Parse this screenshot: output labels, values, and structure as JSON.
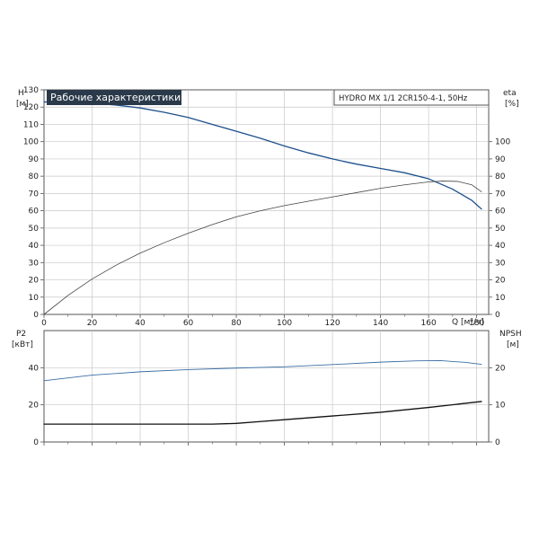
{
  "header": {
    "title": "Рабочие характеристики",
    "model": "HYDRO MX 1/1 2CR150-4-1, 50Hz",
    "title_bg": "#2b3a4a"
  },
  "colors": {
    "head_curve": "#1d4f8c",
    "eta_curve": "#444444",
    "p2_curve": "#3a6ea5",
    "npsh_curve": "#111111",
    "grid": "#c8c8c8",
    "frame": "#555555"
  },
  "chart_data": [
    {
      "type": "line",
      "panel": "main",
      "x_label": "Q [м³/ч]",
      "xlim": [
        0,
        185
      ],
      "x_ticks": [
        0,
        20,
        40,
        60,
        80,
        100,
        120,
        140,
        160,
        180
      ],
      "y_left": {
        "label_top": "H",
        "label_unit": "[м]",
        "ylim": [
          0,
          130
        ],
        "ticks": [
          0,
          10,
          20,
          30,
          40,
          50,
          60,
          70,
          80,
          90,
          100,
          110,
          120,
          130
        ]
      },
      "y_right": {
        "label_top": "eta",
        "label_unit": "[%]",
        "ylim": [
          0,
          130
        ],
        "ticks": [
          0,
          10,
          20,
          30,
          40,
          50,
          60,
          70,
          80,
          90,
          100
        ]
      },
      "grid": true,
      "series": [
        {
          "axis": "left",
          "x": [
            0,
            10,
            20,
            30,
            40,
            50,
            60,
            70,
            80,
            90,
            100,
            110,
            120,
            130,
            140,
            150,
            160,
            170,
            178,
            182
          ],
          "y": [
            123,
            122.8,
            122.3,
            121.2,
            119.5,
            117,
            114,
            110,
            106,
            102,
            97.5,
            93.5,
            90,
            87,
            84.5,
            82,
            78.5,
            72.5,
            66,
            61
          ]
        },
        {
          "axis": "right",
          "x": [
            0,
            10,
            20,
            30,
            40,
            50,
            60,
            70,
            80,
            90,
            100,
            110,
            120,
            130,
            140,
            150,
            160,
            166,
            172,
            178,
            182
          ],
          "y": [
            0,
            11,
            20.5,
            28.5,
            35.5,
            41.5,
            47,
            52,
            56.5,
            60,
            63,
            65.5,
            68,
            70.5,
            73,
            75,
            76.7,
            77.2,
            77,
            75,
            71
          ]
        }
      ]
    },
    {
      "type": "line",
      "panel": "bottom",
      "xlim": [
        0,
        185
      ],
      "x_ticks": [
        0,
        20,
        40,
        60,
        80,
        100,
        120,
        140,
        160,
        180
      ],
      "y_left": {
        "label_top": "P2",
        "label_unit": "[кВт]",
        "ylim": [
          0,
          60
        ],
        "ticks": [
          0,
          20,
          40
        ]
      },
      "y_right": {
        "label_top": "NPSH",
        "label_unit": "[м]",
        "ylim": [
          0,
          30
        ],
        "ticks": [
          0,
          10,
          20
        ]
      },
      "grid": true,
      "series": [
        {
          "axis": "left",
          "x": [
            0,
            20,
            40,
            60,
            80,
            100,
            120,
            140,
            155,
            165,
            175,
            182
          ],
          "y": [
            33,
            36,
            37.8,
            39,
            39.8,
            40.5,
            41.7,
            43,
            43.7,
            43.8,
            42.9,
            41.8
          ]
        },
        {
          "axis": "right",
          "x": [
            0,
            20,
            40,
            60,
            70,
            80,
            90,
            100,
            120,
            140,
            160,
            182
          ],
          "y": [
            4.8,
            4.8,
            4.8,
            4.8,
            4.8,
            5,
            5.5,
            6,
            7,
            8,
            9.3,
            10.9
          ]
        }
      ]
    }
  ]
}
